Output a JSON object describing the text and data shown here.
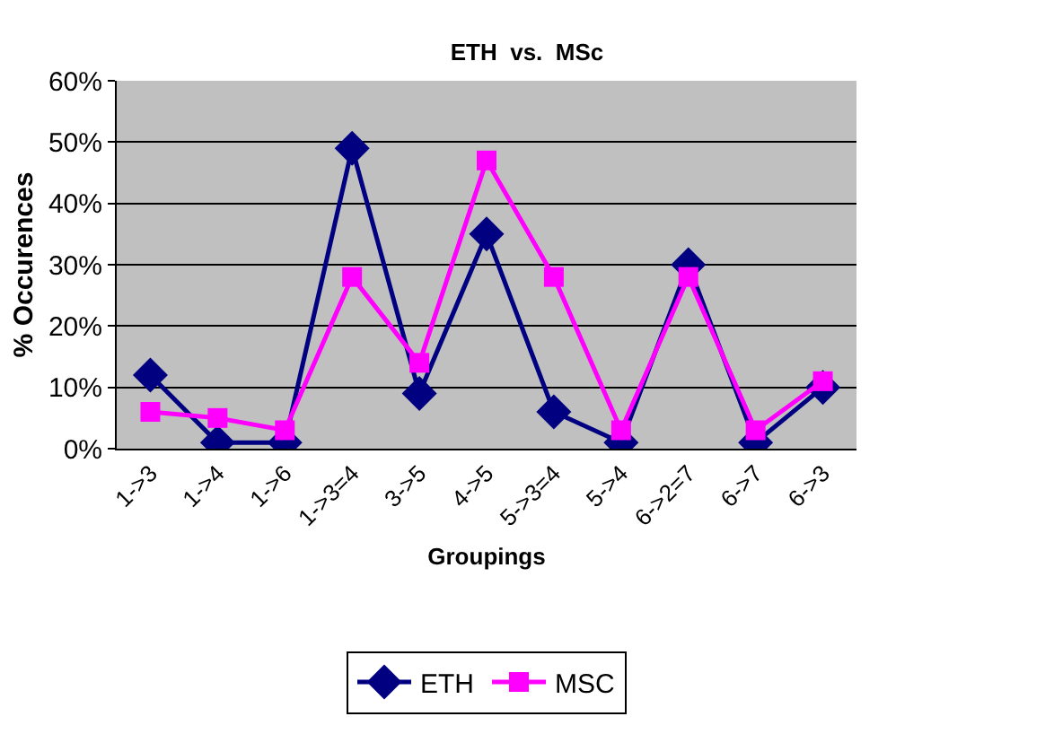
{
  "chart_data": {
    "type": "line",
    "title": "ETH  vs.  MSc",
    "xlabel": "Groupings",
    "ylabel": "% Occurences",
    "categories": [
      "1->3",
      "1->4",
      "1->6",
      "1->3=4",
      "3->5",
      "4->5",
      "5->3=4",
      "5->4",
      "6->2=7",
      "6->7",
      "6->3"
    ],
    "series": [
      {
        "name": "ETH",
        "color": "#000080",
        "marker": "diamond",
        "values": [
          12,
          1,
          1,
          49,
          9,
          35,
          6,
          1,
          30,
          1,
          10
        ]
      },
      {
        "name": "MSC",
        "color": "#ff00ff",
        "marker": "square",
        "values": [
          6,
          5,
          3,
          28,
          14,
          47,
          28,
          3,
          28,
          3,
          11
        ]
      }
    ],
    "ylim": [
      0,
      60
    ],
    "yticks": [
      {
        "value": 0,
        "label": "0%"
      },
      {
        "value": 10,
        "label": "10%"
      },
      {
        "value": 20,
        "label": "20%"
      },
      {
        "value": 30,
        "label": "30%"
      },
      {
        "value": 40,
        "label": "40%"
      },
      {
        "value": 50,
        "label": "50%"
      },
      {
        "value": 60,
        "label": "60%"
      }
    ],
    "grid": "y",
    "legend": "bottom"
  }
}
